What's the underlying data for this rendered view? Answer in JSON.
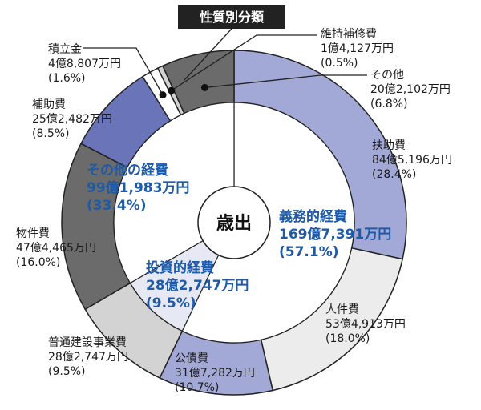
{
  "chart_data": {
    "type": "pie",
    "title": "性質別分類",
    "center_label": "歳出",
    "groups": [
      {
        "name": "義務的経費",
        "amount": "169億7,391万円",
        "share": "(57.1%)",
        "percent": 57.1
      },
      {
        "name": "投資的経費",
        "amount": "28億2,747万円",
        "share": "(9.5%)",
        "percent": 9.5
      },
      {
        "name": "その他の経費",
        "amount": "99億1,983万円",
        "share": "(33.4%)",
        "percent": 33.4
      }
    ],
    "segments": [
      {
        "name": "扶助費",
        "amount": "84億5,196万円",
        "share": "(28.4%)",
        "percent": 28.4,
        "group": "義務的経費",
        "color": "#a3a9d6"
      },
      {
        "name": "人件費",
        "amount": "53億4,913万円",
        "share": "(18.0%)",
        "percent": 18.0,
        "group": "義務的経費",
        "color": "#ececec"
      },
      {
        "name": "公債費",
        "amount": "31億7,282万円",
        "share": "(10.7%)",
        "percent": 10.7,
        "group": "義務的経費",
        "color": "#a3a9d6"
      },
      {
        "name": "普通建設事業費",
        "amount": "28億2,747万円",
        "share": "(9.5%)",
        "percent": 9.5,
        "group": "投資的経費",
        "color": "#d3d3d3"
      },
      {
        "name": "物件費",
        "amount": "47億4,465万円",
        "share": "(16.0%)",
        "percent": 16.0,
        "group": "その他の経費",
        "color": "#6b6b6b"
      },
      {
        "name": "補助費",
        "amount": "25億2,482万円",
        "share": "(8.5%)",
        "percent": 8.5,
        "group": "その他の経費",
        "color": "#6a74b8"
      },
      {
        "name": "積立金",
        "amount": "4億8,807万円",
        "share": "(1.6%)",
        "percent": 1.6,
        "group": "その他の経費",
        "color": "#ffffff"
      },
      {
        "name": "維持補修費",
        "amount": "1億4,127万円",
        "share": "(0.5%)",
        "percent": 0.5,
        "group": "その他の経費",
        "color": "#d3d3d3"
      },
      {
        "name": "その他",
        "amount": "20億2,102万円",
        "share": "(6.8%)",
        "percent": 6.8,
        "group": "その他の経費",
        "color": "#6b6b6b"
      }
    ]
  }
}
